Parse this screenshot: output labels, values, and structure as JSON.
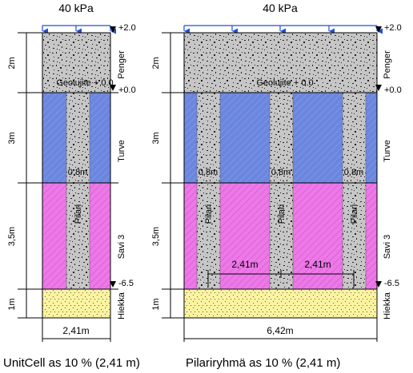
{
  "load": {
    "left": "40 kPa",
    "right": "40 kPa"
  },
  "elevations": {
    "top": "+2.0",
    "embankment_base": "+0.0",
    "pile_tip": "-6.5"
  },
  "geotextile": {
    "left": "Geolujite + 0.0",
    "right": "Geolujite + 0.0"
  },
  "layers": [
    {
      "id": "penger",
      "name": "Penger",
      "thickness": "2m",
      "color": "#c8c8c8"
    },
    {
      "id": "turve",
      "name": "Turve",
      "thickness": "3m",
      "color": "#6b86df"
    },
    {
      "id": "savi",
      "name": "Savi 3",
      "thickness": "3,5m",
      "color": "#ee78e8"
    },
    {
      "id": "hiekka",
      "name": "Hiekka",
      "thickness": "1m",
      "color": "#fbf3a0"
    }
  ],
  "piles": {
    "label": "Pilari",
    "width_label": "0,8m",
    "pile_spacing_label": "2,41m"
  },
  "widths": {
    "left": "2,41m",
    "right": "6,42m"
  },
  "captions": {
    "left": "UnitCell as 10 % (2,41 m)",
    "right": "Pilariryhmä as 10 % (2,41 m)"
  }
}
